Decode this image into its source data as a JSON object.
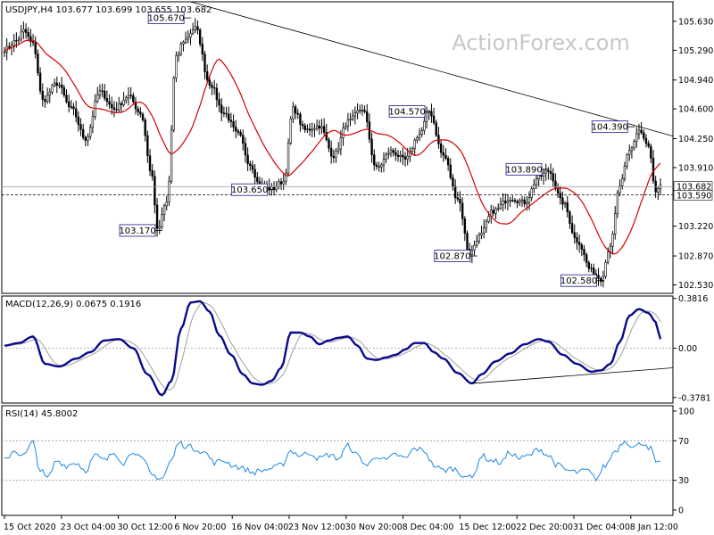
{
  "chart_data": {
    "type": "candlestick",
    "symbol_header": "USDJPY,H4  103.677 103.699 103.655 103.682",
    "watermark": "ActionForex.com",
    "price_axis": {
      "range": [
        102.43,
        105.86
      ],
      "ticks": [
        "105.630",
        "105.290",
        "104.940",
        "104.600",
        "104.250",
        "103.910",
        "103.220",
        "102.870",
        "102.530"
      ],
      "current_price": "103.682",
      "reference_line": "103.590"
    },
    "time_axis": {
      "ticks": [
        "15 Oct 2020",
        "23 Oct 04:00",
        "30 Oct 12:00",
        "6 Nov 20:00",
        "16 Nov 04:00",
        "23 Nov 12:00",
        "30 Nov 20:00",
        "8 Dec 04:00",
        "15 Dec 12:00",
        "22 Dec 20:00",
        "31 Dec 04:00",
        "8 Jan 12:00"
      ]
    },
    "price_anchors": [
      [
        0,
        105.3
      ],
      [
        5,
        105.4
      ],
      [
        8,
        105.52
      ],
      [
        12,
        105.36
      ],
      [
        16,
        104.7
      ],
      [
        22,
        104.9
      ],
      [
        28,
        104.6
      ],
      [
        34,
        104.25
      ],
      [
        40,
        104.8
      ],
      [
        46,
        104.6
      ],
      [
        52,
        104.75
      ],
      [
        57,
        104.55
      ],
      [
        62,
        103.8
      ],
      [
        64,
        103.17
      ],
      [
        68,
        103.5
      ],
      [
        72,
        105.2
      ],
      [
        75,
        105.4
      ],
      [
        80,
        105.55
      ],
      [
        86,
        104.9
      ],
      [
        92,
        104.55
      ],
      [
        98,
        104.3
      ],
      [
        103,
        103.95
      ],
      [
        107,
        103.7
      ],
      [
        112,
        103.66
      ],
      [
        117,
        103.75
      ],
      [
        121,
        104.6
      ],
      [
        126,
        104.35
      ],
      [
        132,
        104.4
      ],
      [
        138,
        104.05
      ],
      [
        144,
        104.45
      ],
      [
        150,
        104.6
      ],
      [
        156,
        103.9
      ],
      [
        162,
        104.1
      ],
      [
        168,
        104.0
      ],
      [
        174,
        104.3
      ],
      [
        178,
        104.57
      ],
      [
        184,
        104.05
      ],
      [
        190,
        103.55
      ],
      [
        195,
        102.9
      ],
      [
        199,
        103.1
      ],
      [
        205,
        103.4
      ],
      [
        212,
        103.55
      ],
      [
        218,
        103.5
      ],
      [
        224,
        103.8
      ],
      [
        228,
        103.87
      ],
      [
        234,
        103.5
      ],
      [
        240,
        103.05
      ],
      [
        246,
        102.7
      ],
      [
        250,
        102.6
      ],
      [
        254,
        103.0
      ],
      [
        258,
        103.7
      ],
      [
        262,
        104.1
      ],
      [
        266,
        104.35
      ],
      [
        270,
        104.15
      ],
      [
        273,
        103.6
      ],
      [
        275,
        103.68
      ]
    ],
    "annotations": [
      {
        "label": "105.670",
        "bar": 76,
        "price": 105.67,
        "box": "left"
      },
      {
        "label": "103.170",
        "bar": 64,
        "price": 103.17,
        "box": "left"
      },
      {
        "label": "103.650",
        "bar": 111,
        "price": 103.65,
        "box": "left"
      },
      {
        "label": "104.570",
        "bar": 177,
        "price": 104.57,
        "box": "left"
      },
      {
        "label": "102.870",
        "bar": 196,
        "price": 102.87,
        "box": "left"
      },
      {
        "label": "103.890",
        "bar": 226,
        "price": 103.89,
        "box": "left"
      },
      {
        "label": "102.580",
        "bar": 249,
        "price": 102.58,
        "box": "left"
      },
      {
        "label": "104.390",
        "bar": 262,
        "price": 104.39,
        "box": "left"
      }
    ],
    "trendline": {
      "from": [
        78,
        105.86
      ],
      "to": [
        275,
        104.28
      ]
    },
    "macd": {
      "label": "MACD(12,26,9) 0.0675 0.1916",
      "range": [
        -0.42,
        0.4
      ],
      "ticks": [
        "0.3816",
        "0.00",
        "-0.3781"
      ],
      "main_anchors": [
        [
          0,
          0.02
        ],
        [
          6,
          0.04
        ],
        [
          12,
          0.09
        ],
        [
          17,
          -0.12
        ],
        [
          23,
          -0.14
        ],
        [
          30,
          -0.08
        ],
        [
          36,
          -0.03
        ],
        [
          42,
          0.06
        ],
        [
          48,
          0.07
        ],
        [
          54,
          0.0
        ],
        [
          60,
          -0.2
        ],
        [
          66,
          -0.36
        ],
        [
          70,
          -0.25
        ],
        [
          74,
          0.15
        ],
        [
          78,
          0.35
        ],
        [
          82,
          0.36
        ],
        [
          86,
          0.28
        ],
        [
          90,
          0.1
        ],
        [
          95,
          -0.05
        ],
        [
          100,
          -0.2
        ],
        [
          104,
          -0.27
        ],
        [
          108,
          -0.28
        ],
        [
          112,
          -0.25
        ],
        [
          116,
          -0.15
        ],
        [
          120,
          0.12
        ],
        [
          124,
          0.12
        ],
        [
          128,
          0.09
        ],
        [
          132,
          0.03
        ],
        [
          136,
          0.06
        ],
        [
          140,
          0.08
        ],
        [
          144,
          0.09
        ],
        [
          148,
          0.02
        ],
        [
          152,
          -0.08
        ],
        [
          156,
          -0.09
        ],
        [
          160,
          -0.07
        ],
        [
          164,
          -0.05
        ],
        [
          168,
          -0.01
        ],
        [
          172,
          0.04
        ],
        [
          176,
          0.04
        ],
        [
          180,
          -0.03
        ],
        [
          184,
          -0.08
        ],
        [
          190,
          -0.19
        ],
        [
          196,
          -0.27
        ],
        [
          200,
          -0.2
        ],
        [
          206,
          -0.1
        ],
        [
          212,
          -0.04
        ],
        [
          218,
          0.03
        ],
        [
          224,
          0.07
        ],
        [
          228,
          0.05
        ],
        [
          234,
          -0.05
        ],
        [
          240,
          -0.12
        ],
        [
          246,
          -0.18
        ],
        [
          250,
          -0.17
        ],
        [
          254,
          -0.12
        ],
        [
          258,
          0.05
        ],
        [
          262,
          0.25
        ],
        [
          266,
          0.3
        ],
        [
          270,
          0.27
        ],
        [
          273,
          0.2
        ],
        [
          275,
          0.07
        ]
      ],
      "signal_lag": 3,
      "signal_value": 0.1916,
      "trendline": {
        "from": [
          196,
          -0.27
        ],
        "to": [
          275,
          -0.15
        ]
      }
    },
    "rsi": {
      "label": "RSI(14) 45.8002",
      "range": [
        0,
        100
      ],
      "ticks": [
        "100",
        "70",
        "30",
        "0"
      ],
      "levels": [
        70,
        30
      ],
      "anchors": [
        [
          0,
          50
        ],
        [
          4,
          60
        ],
        [
          8,
          55
        ],
        [
          12,
          68
        ],
        [
          15,
          40
        ],
        [
          18,
          32
        ],
        [
          22,
          50
        ],
        [
          26,
          45
        ],
        [
          30,
          48
        ],
        [
          34,
          40
        ],
        [
          38,
          55
        ],
        [
          42,
          50
        ],
        [
          46,
          58
        ],
        [
          50,
          48
        ],
        [
          54,
          60
        ],
        [
          58,
          50
        ],
        [
          62,
          35
        ],
        [
          66,
          32
        ],
        [
          70,
          50
        ],
        [
          73,
          68
        ],
        [
          76,
          65
        ],
        [
          80,
          62
        ],
        [
          84,
          58
        ],
        [
          88,
          48
        ],
        [
          92,
          50
        ],
        [
          96,
          45
        ],
        [
          100,
          42
        ],
        [
          104,
          38
        ],
        [
          108,
          40
        ],
        [
          112,
          42
        ],
        [
          116,
          45
        ],
        [
          120,
          60
        ],
        [
          124,
          55
        ],
        [
          128,
          58
        ],
        [
          132,
          52
        ],
        [
          136,
          56
        ],
        [
          140,
          52
        ],
        [
          144,
          65
        ],
        [
          148,
          55
        ],
        [
          152,
          45
        ],
        [
          156,
          55
        ],
        [
          160,
          50
        ],
        [
          164,
          56
        ],
        [
          168,
          52
        ],
        [
          172,
          62
        ],
        [
          176,
          60
        ],
        [
          180,
          45
        ],
        [
          184,
          40
        ],
        [
          188,
          42
        ],
        [
          192,
          36
        ],
        [
          196,
          32
        ],
        [
          200,
          55
        ],
        [
          204,
          50
        ],
        [
          208,
          48
        ],
        [
          212,
          58
        ],
        [
          216,
          52
        ],
        [
          220,
          55
        ],
        [
          224,
          62
        ],
        [
          228,
          55
        ],
        [
          232,
          45
        ],
        [
          236,
          40
        ],
        [
          240,
          38
        ],
        [
          244,
          40
        ],
        [
          248,
          32
        ],
        [
          252,
          45
        ],
        [
          256,
          60
        ],
        [
          260,
          70
        ],
        [
          264,
          64
        ],
        [
          268,
          68
        ],
        [
          271,
          62
        ],
        [
          273,
          48
        ],
        [
          275,
          46
        ]
      ]
    }
  }
}
